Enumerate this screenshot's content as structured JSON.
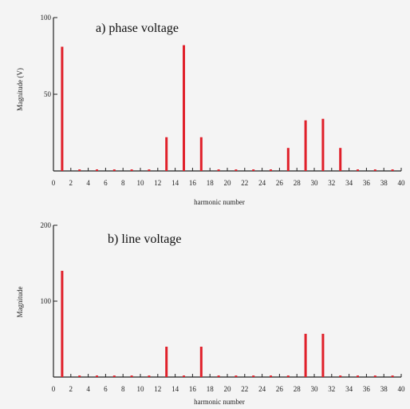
{
  "chart_data": [
    {
      "type": "bar",
      "title": "a) phase voltage",
      "xlabel": "harmonic number",
      "ylabel": "Magnitude (V)",
      "xlim": [
        0,
        40
      ],
      "ylim": [
        0,
        100
      ],
      "yticks": [
        50,
        100
      ],
      "xticks": [
        0,
        2,
        4,
        6,
        8,
        10,
        12,
        14,
        16,
        18,
        20,
        22,
        24,
        26,
        28,
        30,
        32,
        34,
        36,
        38,
        40
      ],
      "x": [
        1,
        3,
        5,
        7,
        9,
        11,
        13,
        15,
        17,
        19,
        21,
        23,
        25,
        27,
        29,
        31,
        33,
        35,
        37,
        39
      ],
      "values": [
        81,
        1,
        1,
        1,
        1,
        1,
        22,
        82,
        22,
        1,
        1,
        1,
        1,
        15,
        33,
        34,
        15,
        1,
        1,
        1
      ],
      "bar_color": "#e0202a",
      "grid": false
    },
    {
      "type": "bar",
      "title": "b) line voltage",
      "xlabel": "harmonic number",
      "ylabel": "Magnitude",
      "xlim": [
        0,
        40
      ],
      "ylim": [
        0,
        200
      ],
      "yticks": [
        100,
        200
      ],
      "xticks": [
        0,
        2,
        4,
        6,
        8,
        10,
        12,
        14,
        16,
        18,
        20,
        22,
        24,
        26,
        28,
        30,
        32,
        34,
        36,
        38,
        40
      ],
      "x": [
        1,
        3,
        5,
        7,
        9,
        11,
        13,
        15,
        17,
        19,
        21,
        23,
        25,
        27,
        29,
        31,
        33,
        35,
        37,
        39
      ],
      "values": [
        140,
        2,
        2,
        2,
        2,
        2,
        40,
        2,
        40,
        2,
        2,
        2,
        2,
        2,
        57,
        57,
        2,
        2,
        2,
        2
      ],
      "bar_color": "#e0202a",
      "grid": false
    }
  ]
}
